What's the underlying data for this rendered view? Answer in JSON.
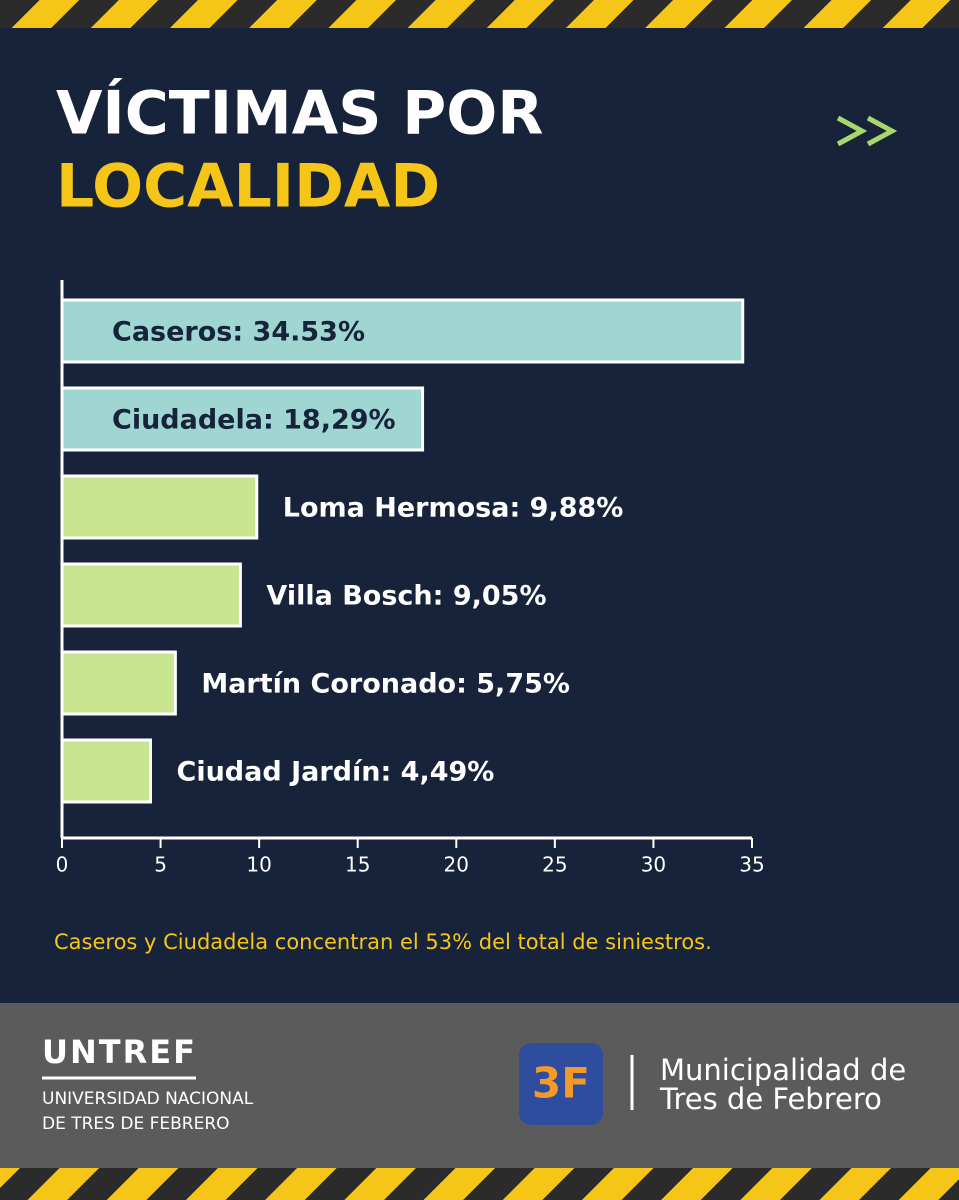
{
  "chart_data": {
    "type": "bar",
    "orientation": "horizontal",
    "title": "VÍCTIMAS POR",
    "title_highlight": "LOCALIDAD",
    "values": [
      34.53,
      18.29,
      9.88,
      9.05,
      5.75,
      4.49
    ],
    "value_labels": [
      "Caseros: 34.53%",
      "Ciudadela: 18,29%",
      "Loma Hermosa: 9,88%",
      "Villa Bosch: 9,05%",
      "Martín Coronado: 5,75%",
      "Ciudad Jardín: 4,49%"
    ],
    "colors": [
      "#9fd6d2",
      "#9fd6d2",
      "#c8e58f",
      "#c8e58f",
      "#c8e58f",
      "#c8e58f"
    ],
    "xlim": [
      0,
      35
    ],
    "xticks": [
      0,
      5,
      10,
      15,
      20,
      25,
      30,
      35
    ],
    "annotation": "Caseros y Ciudadela concentran el 53% del total de siniestros."
  },
  "footer": {
    "left_logo": "UNTREF",
    "left_line1": "UNIVERSIDAD NACIONAL",
    "left_line2": "DE TRES DE FEBRERO",
    "right_logo": "3F",
    "right_line1": "Municipalidad de",
    "right_line2": "Tres de Febrero"
  }
}
